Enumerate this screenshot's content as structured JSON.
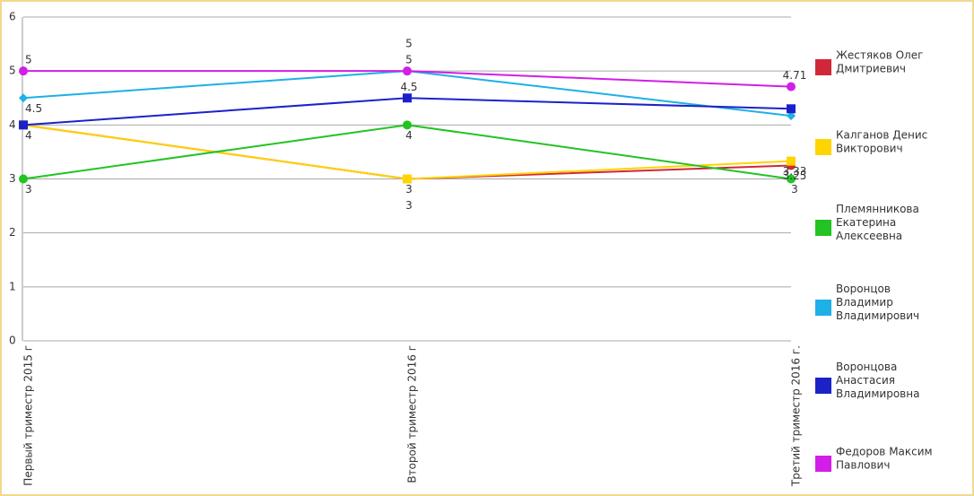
{
  "chart_data": {
    "type": "line",
    "categories": [
      "Первый триместр 2015 г",
      "Второй триместр 2016 г",
      "Третий триместр 2016 г."
    ],
    "ylim": [
      0,
      6
    ],
    "yticks": [
      0,
      1,
      2,
      3,
      4,
      5,
      6
    ],
    "grid": true,
    "legend": "right",
    "series": [
      {
        "name": "Жестяков Олег Дмитриевич",
        "color": "#d0283a",
        "marker": "circle",
        "values": [
          4,
          3,
          3.25
        ],
        "value_labels": [
          null,
          "3",
          "3.25"
        ]
      },
      {
        "name": "Калганов Денис Викторович",
        "color": "#ffd400",
        "marker": "square",
        "values": [
          4,
          3,
          3.33
        ],
        "value_labels": [
          null,
          "3",
          "3.33"
        ]
      },
      {
        "name": "Племянникова Екатерина Алексеевна",
        "color": "#22c322",
        "marker": "circle",
        "values": [
          3,
          4,
          3
        ],
        "value_labels": [
          "3",
          "4",
          "3"
        ]
      },
      {
        "name": "Воронцов Владимир Владимирович",
        "color": "#1eb0e6",
        "marker": "diamond",
        "values": [
          4.5,
          5,
          4.17
        ],
        "value_labels": [
          "4.5",
          "5",
          null
        ]
      },
      {
        "name": "Воронцова Анастасия Владимировна",
        "color": "#1c22c8",
        "marker": "square",
        "values": [
          4,
          4.5,
          4.3
        ],
        "value_labels": [
          "4",
          "4.5",
          null
        ]
      },
      {
        "name": "Федоров Максим Павлович",
        "color": "#d21ee8",
        "marker": "circle",
        "values": [
          5,
          5,
          4.71
        ],
        "value_labels": [
          "5",
          "5",
          "4.71"
        ]
      }
    ]
  }
}
